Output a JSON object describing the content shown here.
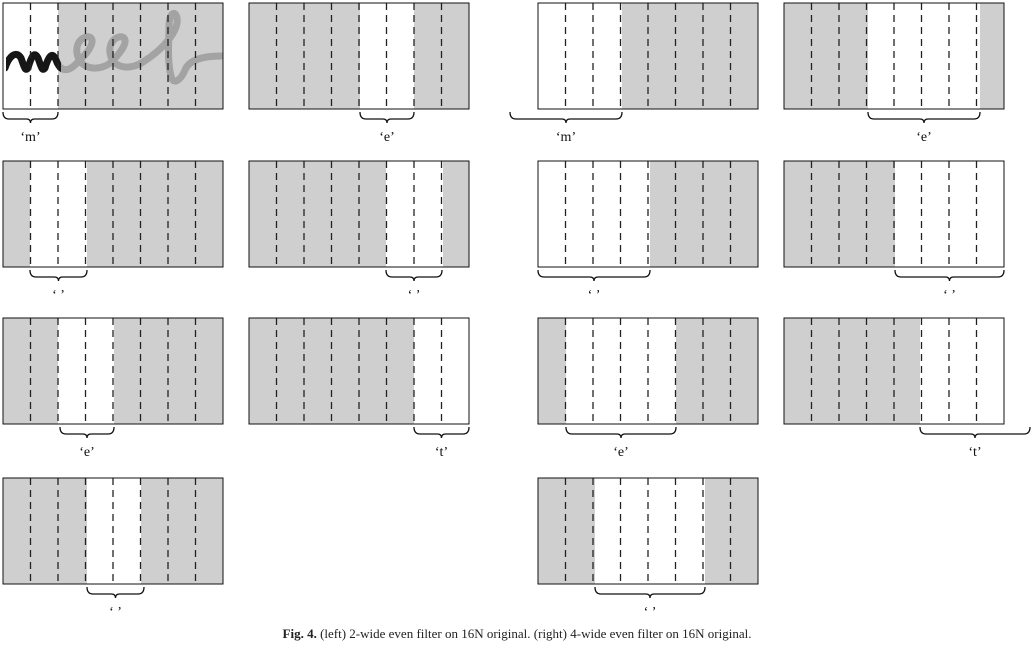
{
  "figure": {
    "colors": {
      "shade": "#cfcfcf",
      "window": "#ffffff",
      "border": "#111111",
      "dash": "#222222",
      "ink_faded": "#a3a3a3",
      "ink_dark": "#161616"
    },
    "word_image": "handwritten 'meet'",
    "panels": [
      {
        "name": "left-panel-1",
        "label": "‘m’"
      },
      {
        "name": "left-panel-2",
        "label": "‘ ’"
      },
      {
        "name": "left-panel-3",
        "label": "‘e’"
      },
      {
        "name": "left-panel-4",
        "label": "‘ ’"
      },
      {
        "name": "left-panel-5",
        "label": "‘e’"
      },
      {
        "name": "left-panel-6",
        "label": "‘ ’"
      },
      {
        "name": "left-panel-7",
        "label": "‘t’"
      },
      {
        "name": "right-panel-1",
        "label": "‘m’"
      },
      {
        "name": "right-panel-2",
        "label": "‘ ’"
      },
      {
        "name": "right-panel-3",
        "label": "‘e’"
      },
      {
        "name": "right-panel-4",
        "label": "‘ ’"
      },
      {
        "name": "right-panel-5",
        "label": "‘e’"
      },
      {
        "name": "right-panel-6",
        "label": "‘ ’"
      },
      {
        "name": "right-panel-7",
        "label": "‘t’"
      }
    ]
  },
  "caption": {
    "label": "Fig. 4.",
    "text": "(left) 2-wide even filter on 16N original. (right) 4-wide even filter on 16N original."
  }
}
